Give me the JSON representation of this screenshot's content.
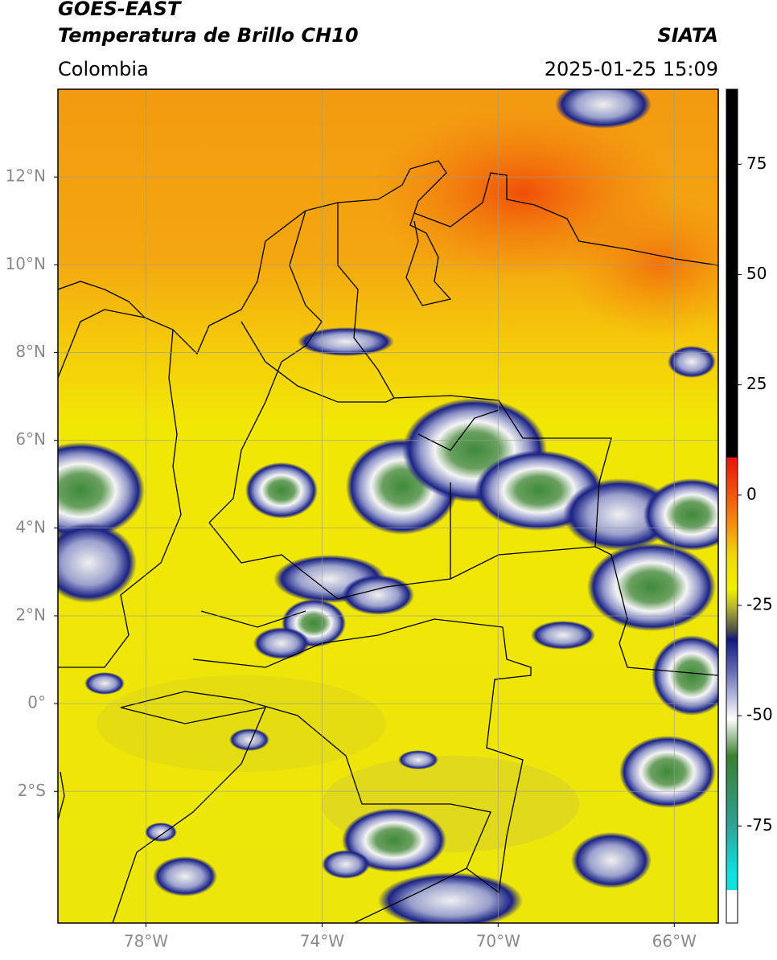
{
  "header": {
    "title": "GOES-EAST",
    "subtitle": "Temperatura de Brillo CH10",
    "source": "SIATA",
    "region": "Colombia",
    "datetime": "2025-01-25 15:09"
  },
  "map": {
    "xlim": [
      -80,
      -65
    ],
    "ylim": [
      -5,
      14
    ],
    "xticks": [
      {
        "value": -78,
        "label": "78°W"
      },
      {
        "value": -74,
        "label": "74°W"
      },
      {
        "value": -70,
        "label": "70°W"
      },
      {
        "value": -66,
        "label": "66°W"
      }
    ],
    "yticks": [
      {
        "value": 12,
        "label": "12°N"
      },
      {
        "value": 10,
        "label": "10°N"
      },
      {
        "value": 8,
        "label": "8°N"
      },
      {
        "value": 6,
        "label": "6°N"
      },
      {
        "value": 4,
        "label": "4°N"
      },
      {
        "value": 2,
        "label": "2°N"
      },
      {
        "value": 0,
        "label": "0°"
      },
      {
        "value": -2,
        "label": "2°S"
      }
    ],
    "grid": true
  },
  "colorbar": {
    "lim": [
      -97,
      92
    ],
    "ticks": [
      75,
      50,
      25,
      0,
      -25,
      -50,
      -75
    ]
  }
}
